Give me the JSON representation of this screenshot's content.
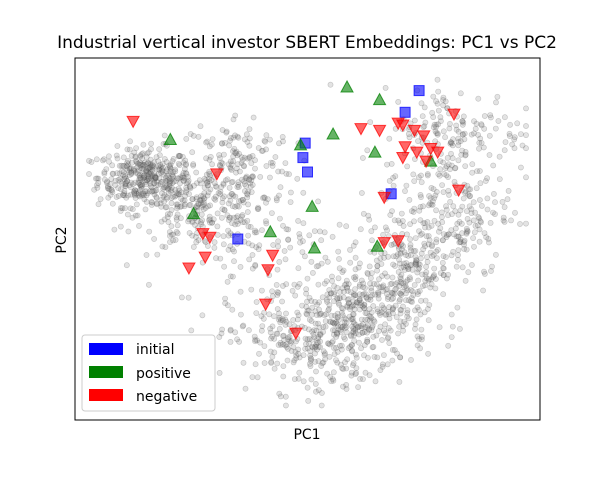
{
  "chart_data": {
    "type": "scatter",
    "title": "Industrial vertical investor SBERT Embeddings: PC1 vs PC2",
    "xlabel": "PC1",
    "ylabel": "PC2",
    "xlim": [
      0,
      100
    ],
    "ylim": [
      0,
      100
    ],
    "ticks_visible": false,
    "grid": false,
    "legend": {
      "placement": "lower-left",
      "entries": [
        {
          "label": "initial",
          "color": "#0000ff"
        },
        {
          "label": "positive",
          "color": "#008000"
        },
        {
          "label": "negative",
          "color": "#ff0000"
        }
      ]
    },
    "background_series": {
      "color": "#808080",
      "marker": "circle",
      "approx_count": 2000,
      "clusters": [
        {
          "cx": 15,
          "cy": 67,
          "sx": 5,
          "sy": 4,
          "n": 360
        },
        {
          "cx": 27,
          "cy": 58,
          "sx": 7,
          "sy": 6,
          "n": 240
        },
        {
          "cx": 35,
          "cy": 71,
          "sx": 6,
          "sy": 7,
          "n": 150
        },
        {
          "cx": 49,
          "cy": 22,
          "sx": 8,
          "sy": 7,
          "n": 260
        },
        {
          "cx": 62,
          "cy": 28,
          "sx": 7,
          "sy": 7,
          "n": 320
        },
        {
          "cx": 71,
          "cy": 42,
          "sx": 6,
          "sy": 6,
          "n": 200
        },
        {
          "cx": 80,
          "cy": 58,
          "sx": 7,
          "sy": 9,
          "n": 220
        },
        {
          "cx": 82,
          "cy": 80,
          "sx": 8,
          "sy": 6,
          "n": 150
        },
        {
          "cx": 41,
          "cy": 48,
          "sx": 9,
          "sy": 8,
          "n": 100
        }
      ]
    },
    "series": [
      {
        "name": "initial",
        "marker": "square",
        "color": "#0000ff",
        "points": [
          [
            49.5,
            76.5
          ],
          [
            49.0,
            72.5
          ],
          [
            50.0,
            68.5
          ],
          [
            35.0,
            50.0
          ],
          [
            68.0,
            62.5
          ],
          [
            71.0,
            85.0
          ],
          [
            74.0,
            91.0
          ]
        ]
      },
      {
        "name": "positive",
        "marker": "triangle-up",
        "color": "#008000",
        "points": [
          [
            58.5,
            92.0
          ],
          [
            65.5,
            88.5
          ],
          [
            55.5,
            79.0
          ],
          [
            48.5,
            76.0
          ],
          [
            64.5,
            74.0
          ],
          [
            76.5,
            71.5
          ],
          [
            20.5,
            77.5
          ],
          [
            25.5,
            57.0
          ],
          [
            51.0,
            59.0
          ],
          [
            42.0,
            52.0
          ],
          [
            51.5,
            47.5
          ],
          [
            65.0,
            48.0
          ]
        ]
      },
      {
        "name": "negative",
        "marker": "triangle-down",
        "color": "#ff0000",
        "points": [
          [
            12.5,
            82.5
          ],
          [
            61.5,
            80.5
          ],
          [
            65.5,
            80.0
          ],
          [
            69.5,
            82.0
          ],
          [
            70.5,
            81.5
          ],
          [
            73.0,
            80.0
          ],
          [
            75.0,
            78.5
          ],
          [
            71.0,
            75.5
          ],
          [
            73.5,
            74.0
          ],
          [
            76.5,
            75.0
          ],
          [
            78.0,
            74.0
          ],
          [
            70.5,
            72.5
          ],
          [
            75.5,
            71.5
          ],
          [
            81.5,
            84.5
          ],
          [
            82.5,
            63.5
          ],
          [
            66.5,
            61.5
          ],
          [
            30.5,
            68.0
          ],
          [
            27.5,
            51.5
          ],
          [
            29.0,
            50.5
          ],
          [
            69.5,
            49.5
          ],
          [
            66.5,
            49.0
          ],
          [
            28.0,
            45.0
          ],
          [
            42.5,
            45.5
          ],
          [
            24.5,
            42.0
          ],
          [
            41.5,
            41.5
          ],
          [
            41.0,
            32.0
          ],
          [
            47.5,
            24.0
          ]
        ]
      }
    ]
  }
}
